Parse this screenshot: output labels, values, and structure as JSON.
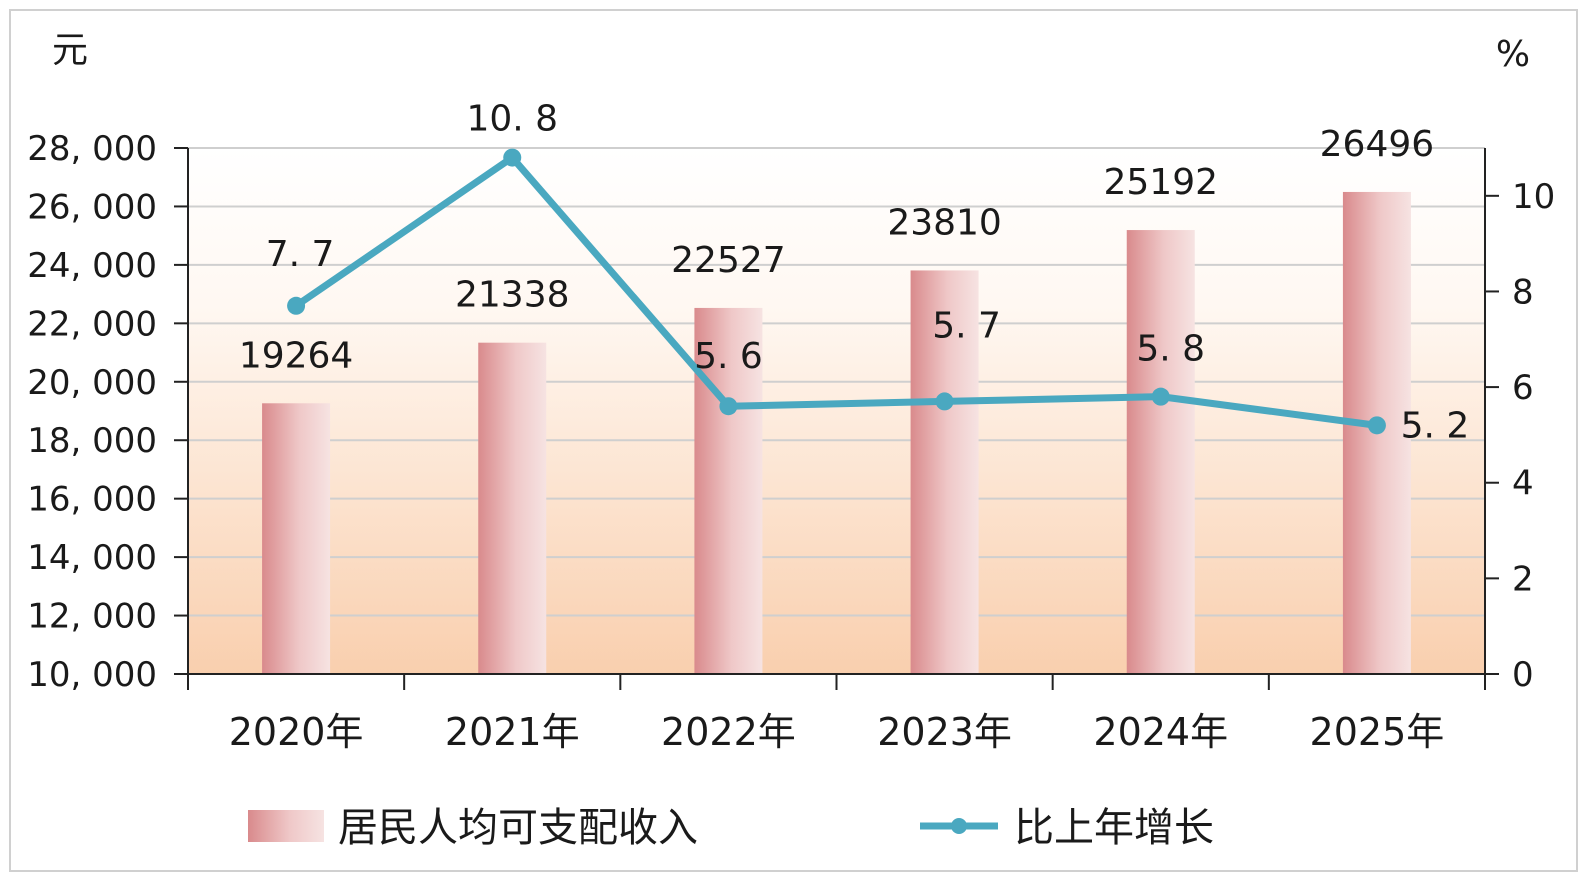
{
  "chart_data": {
    "type": "bar",
    "title": "",
    "categories": [
      "2020年",
      "2021年",
      "2022年",
      "2023年",
      "2024年",
      "2025年"
    ],
    "series": [
      {
        "name": "居民人均可支配收入",
        "type": "bar",
        "axis": "left",
        "values": [
          19264,
          21338,
          22527,
          23810,
          25192,
          26496
        ],
        "labels": [
          "19264",
          "21338",
          "22527",
          "23810",
          "25192",
          "26496"
        ]
      },
      {
        "name": "比上年增长",
        "type": "line",
        "axis": "right",
        "values": [
          7.7,
          10.8,
          5.6,
          5.7,
          5.8,
          5.2
        ],
        "labels": [
          "7. 7",
          "10. 8",
          "5. 6",
          "5. 7",
          "5. 8",
          "5. 2"
        ]
      }
    ],
    "left_axis": {
      "unit": "元",
      "ylim": [
        10000,
        28000
      ],
      "ticks": [
        10000,
        12000,
        14000,
        16000,
        18000,
        20000,
        22000,
        24000,
        26000,
        28000
      ],
      "tick_labels": [
        "10, 000",
        "12, 000",
        "14, 000",
        "16, 000",
        "18, 000",
        "20, 000",
        "22, 000",
        "24, 000",
        "26, 000",
        "28, 000"
      ]
    },
    "right_axis": {
      "unit": "%",
      "ylim": [
        0,
        11
      ],
      "ticks": [
        0,
        2,
        4,
        6,
        8,
        10
      ],
      "tick_labels": [
        "0",
        "2",
        "4",
        "6",
        "8",
        "10"
      ]
    },
    "grid": true,
    "legend": "bottom",
    "colors": {
      "bar_dark": "#d98a8c",
      "bar_light": "#f4dede",
      "line": "#4aa8c0",
      "background_top": "#fffaf6",
      "background_bottom": "#f9cfae",
      "grid": "#cfcfcf"
    }
  }
}
